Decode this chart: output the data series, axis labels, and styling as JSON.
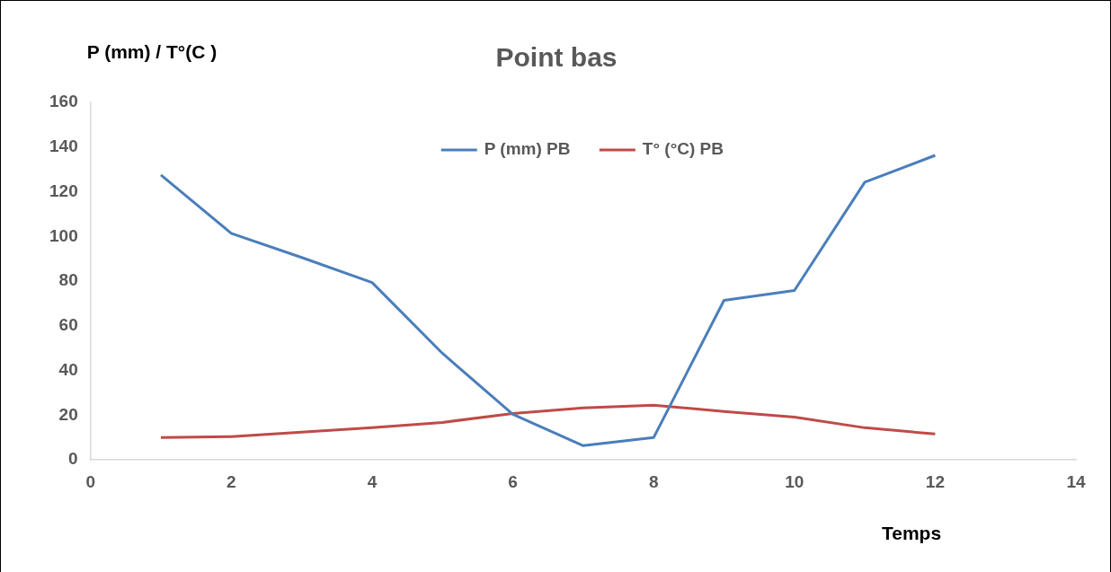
{
  "chart_data": {
    "type": "line",
    "title": "Point bas",
    "xlabel": "Temps",
    "ylabel": "P (mm) / T°(C )",
    "x": [
      1,
      2,
      3,
      4,
      5,
      6,
      7,
      8,
      9,
      10,
      11,
      12
    ],
    "series": [
      {
        "name": "P (mm) PB",
        "color": "#4a7ebb",
        "values": [
          127.5,
          101.4,
          90.6,
          79.4,
          47.7,
          20.4,
          6.4,
          10,
          71.4,
          75.8,
          124.3,
          136.3
        ]
      },
      {
        "name": "T° (°C) PB",
        "color": "#be4b48",
        "values": [
          10,
          10.4,
          12.4,
          14.4,
          16.8,
          20.8,
          23.3,
          24.5,
          21.7,
          19.2,
          14.4,
          11.6
        ]
      }
    ],
    "xlim": [
      0,
      14
    ],
    "xticks": [
      0,
      2,
      4,
      6,
      8,
      10,
      12,
      14
    ],
    "ylim": [
      0,
      160
    ],
    "yticks": [
      0,
      20,
      40,
      60,
      80,
      100,
      120,
      140,
      160
    ],
    "grid": false,
    "legend": "top",
    "marker": "none",
    "line_style": "solid"
  }
}
